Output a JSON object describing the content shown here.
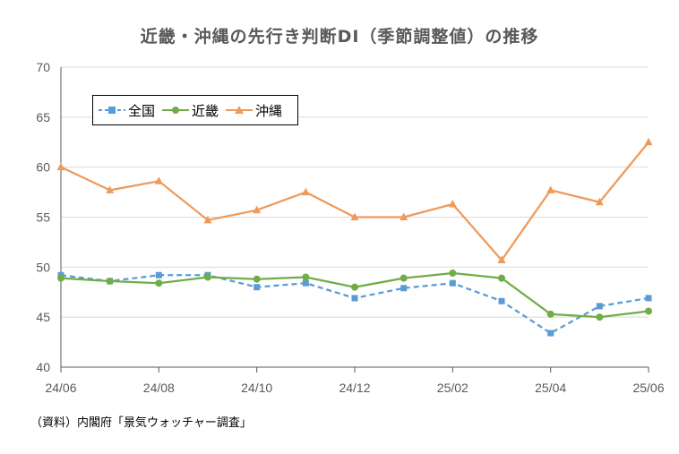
{
  "chart_data": {
    "type": "line",
    "title": "近畿・沖縄の先行き判断DI（季節調整値）の推移",
    "categories": [
      "24/06",
      "24/07",
      "24/08",
      "24/09",
      "24/10",
      "24/11",
      "24/12",
      "25/01",
      "25/02",
      "25/03",
      "25/04",
      "25/05",
      "25/06"
    ],
    "x_tick_labels": [
      "24/06",
      "24/08",
      "24/10",
      "24/12",
      "25/02",
      "25/04",
      "25/06"
    ],
    "y_tick_labels": [
      "40",
      "45",
      "50",
      "55",
      "60",
      "65",
      "70"
    ],
    "ylim": [
      40,
      70
    ],
    "ytick_step": 5,
    "grid": true,
    "legend_position": "top-left",
    "series": [
      {
        "name": "全国",
        "color": "#5B9BD5",
        "dash": "dashed",
        "marker": "square",
        "values": [
          49.2,
          48.6,
          49.2,
          49.2,
          48.0,
          48.4,
          46.9,
          47.9,
          48.4,
          46.6,
          43.4,
          46.1,
          46.9
        ]
      },
      {
        "name": "近畿",
        "color": "#70AD47",
        "dash": "solid",
        "marker": "circle",
        "values": [
          48.9,
          48.6,
          48.4,
          49.0,
          48.8,
          49.0,
          48.0,
          48.9,
          49.4,
          48.9,
          45.3,
          45.0,
          45.6
        ]
      },
      {
        "name": "沖縄",
        "color": "#ED9A5B",
        "dash": "solid",
        "marker": "triangle",
        "values": [
          60.0,
          57.7,
          58.6,
          54.7,
          55.7,
          57.5,
          55.0,
          55.0,
          56.3,
          50.7,
          57.7,
          56.5,
          62.5
        ]
      }
    ]
  },
  "source_note": "（資料）内閣府「景気ウォッチャー調査」"
}
